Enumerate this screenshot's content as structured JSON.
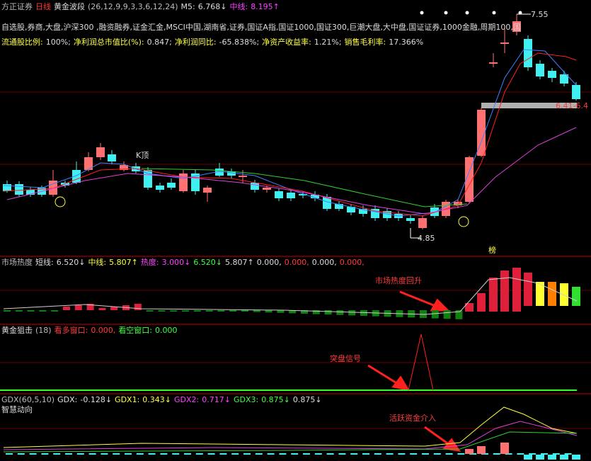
{
  "header": {
    "stock": "方正证券",
    "period": "日线",
    "indicator": "黄金波段",
    "params": "(26,12,9,9,3,3,6,12,24)",
    "m5_label": "M5:",
    "m5_value": "6.768↓",
    "mid_label": "中线:",
    "mid_value": "8.195↑"
  },
  "sectors": "自选股,券商,大盘,沪深300 ,融资融券,证金汇金,MSCI中国,湖南省,证券,国证A指,国证1000,国证300,巨潮大盘,大中盘,国证证券,1000金融,周期100,国",
  "fundamentals": [
    {
      "label": "流通股比例:",
      "value": "100%;"
    },
    {
      "label": "净利润总市值比(%):",
      "value": "0.847;"
    },
    {
      "label": "净利润同比:",
      "value": "-65.838%;"
    },
    {
      "label": "净资产收益率:",
      "value": "1.21%;"
    },
    {
      "label": "销售毛利率:",
      "value": "17.366%"
    }
  ],
  "price_panel": {
    "high_label": "7.55",
    "low_label": "4.85",
    "k_top": "K顶",
    "right_label": "6.41-6.4",
    "rank": "榜"
  },
  "heat_panel": {
    "title": "市场热度",
    "short_label": "短线:",
    "short_value": "6.520↓",
    "mid_label": "中线:",
    "mid_value": "5.807↑",
    "heat_label": "热度:",
    "heat_value": "3.000↓",
    "extra": [
      "6.520↓",
      "5.807↑",
      "0.000,",
      "0.000,",
      "0.000,",
      "0.000,"
    ],
    "annotation": "市场热度回升"
  },
  "snipe_panel": {
    "title": "黄金狙击",
    "params": "(18)",
    "long_label": "看多窗口:",
    "long_value": "0.000,",
    "short_label": "看空窗口:",
    "short_value": "0.000",
    "annotation": "突盘信号"
  },
  "gdx_panel": {
    "params": "GDX(60,5,10)",
    "gdx_label": "GDX:",
    "gdx_value": "-0.128↓",
    "gdx1_label": "GDX1:",
    "gdx1_value": "0.343↓",
    "gdx2_label": "GDX2:",
    "gdx2_value": "0.717↓",
    "gdx3_label": "GDX3:",
    "gdx3_value": "0.875↓",
    "extra": "0.875↓",
    "title": "智慧动向",
    "annotation": "活跃资金介入"
  }
}
